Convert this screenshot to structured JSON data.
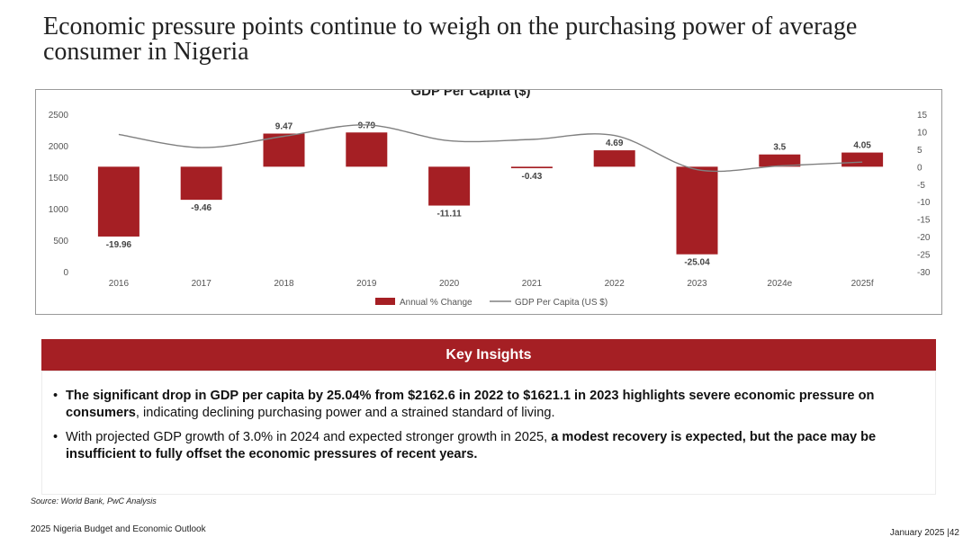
{
  "title": "Economic pressure points continue to weigh on the purchasing power of average consumer in Nigeria",
  "chart_data": {
    "type": "bar",
    "title": "GDP Per Capita ($)",
    "categories": [
      "2016",
      "2017",
      "2018",
      "2019",
      "2020",
      "2021",
      "2022",
      "2023",
      "2024e",
      "2025f"
    ],
    "series": [
      {
        "name": "Annual % Change",
        "type": "bar",
        "axis": "right",
        "color": "#a51f24",
        "values": [
          -19.96,
          -9.46,
          9.47,
          9.79,
          -11.11,
          -0.43,
          4.69,
          -25.04,
          3.5,
          4.05
        ],
        "labels": [
          "-19.96",
          "-9.46",
          "9.47",
          "9.79",
          "-11.11",
          "-0.43",
          "4.69",
          "-25.04",
          "3.5",
          "4.05"
        ]
      },
      {
        "name": "GDP Per Capita (US $)",
        "type": "line",
        "axis": "left",
        "color": "#808080",
        "values": [
          2180,
          1970,
          2150,
          2330,
          2080,
          2100,
          2162.6,
          1621.1,
          1680,
          1740
        ]
      }
    ],
    "y_left": {
      "ticks": [
        "0",
        "500",
        "1000",
        "1500",
        "2000",
        "2500"
      ],
      "range": [
        0,
        2500
      ]
    },
    "y_right": {
      "ticks": [
        "15",
        "10",
        "5",
        "0",
        "-5",
        "-10",
        "-15",
        "-20",
        "-25",
        "-30"
      ],
      "range": [
        -30,
        15
      ]
    },
    "legend_position": "bottom"
  },
  "insights": {
    "header": "Key Insights",
    "bullet_symbol": "•",
    "bullet1_bold": "The significant drop in GDP per capita by 25.04% from $2162.6 in 2022 to $1621.1 in 2023 highlights severe economic pressure  on consumers",
    "bullet1_rest": ", indicating declining purchasing power and a strained standard of living.",
    "bullet2_plain": "With projected GDP growth of 3.0% in 2024 and expected stronger growth in 2025, ",
    "bullet2_bold": "a modest recovery is expected, but the pace may be insufficient to fully offset the economic pressures of recent years."
  },
  "source": "Source: World Bank, PwC Analysis",
  "footer": {
    "left": "2025 Nigeria Budget and Economic Outlook",
    "right": "January 2025 |42"
  },
  "colors": {
    "accent": "#a51f24",
    "line": "#808080"
  }
}
